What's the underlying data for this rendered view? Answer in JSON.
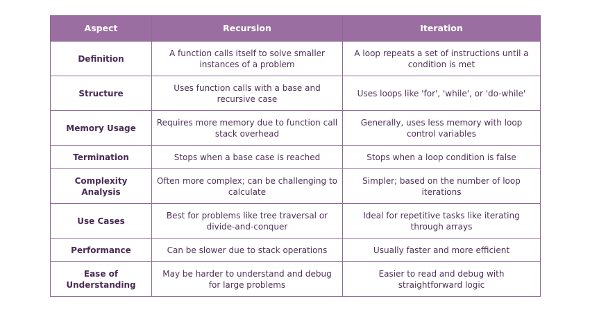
{
  "table": {
    "header": [
      "Aspect",
      "Recursion",
      "Iteration"
    ],
    "rows": [
      [
        "Definition",
        "A function calls itself to solve smaller instances of a problem",
        "A loop repeats a set of instructions until a condition is met"
      ],
      [
        "Structure",
        "Uses function calls with a base and recursive case",
        "Uses loops like 'for', 'while', or 'do-while'"
      ],
      [
        "Memory Usage",
        "Requires more memory due to function call stack overhead",
        "Generally, uses less memory with loop control variables"
      ],
      [
        "Termination",
        "Stops when a base case is reached",
        "Stops when a loop condition is false"
      ],
      [
        "Complexity Analysis",
        "Often more complex; can be challenging to calculate",
        "Simpler; based on the number of loop iterations"
      ],
      [
        "Use Cases",
        "Best for problems like tree traversal or divide-and-conquer",
        "Ideal for repetitive tasks like iterating through arrays"
      ],
      [
        "Performance",
        "Can be slower due to stack operations",
        "Usually faster and more efficient"
      ],
      [
        "Ease of Understanding",
        "May be harder to understand and debug for large problems",
        "Easier to read and debug with straightforward logic"
      ]
    ]
  }
}
